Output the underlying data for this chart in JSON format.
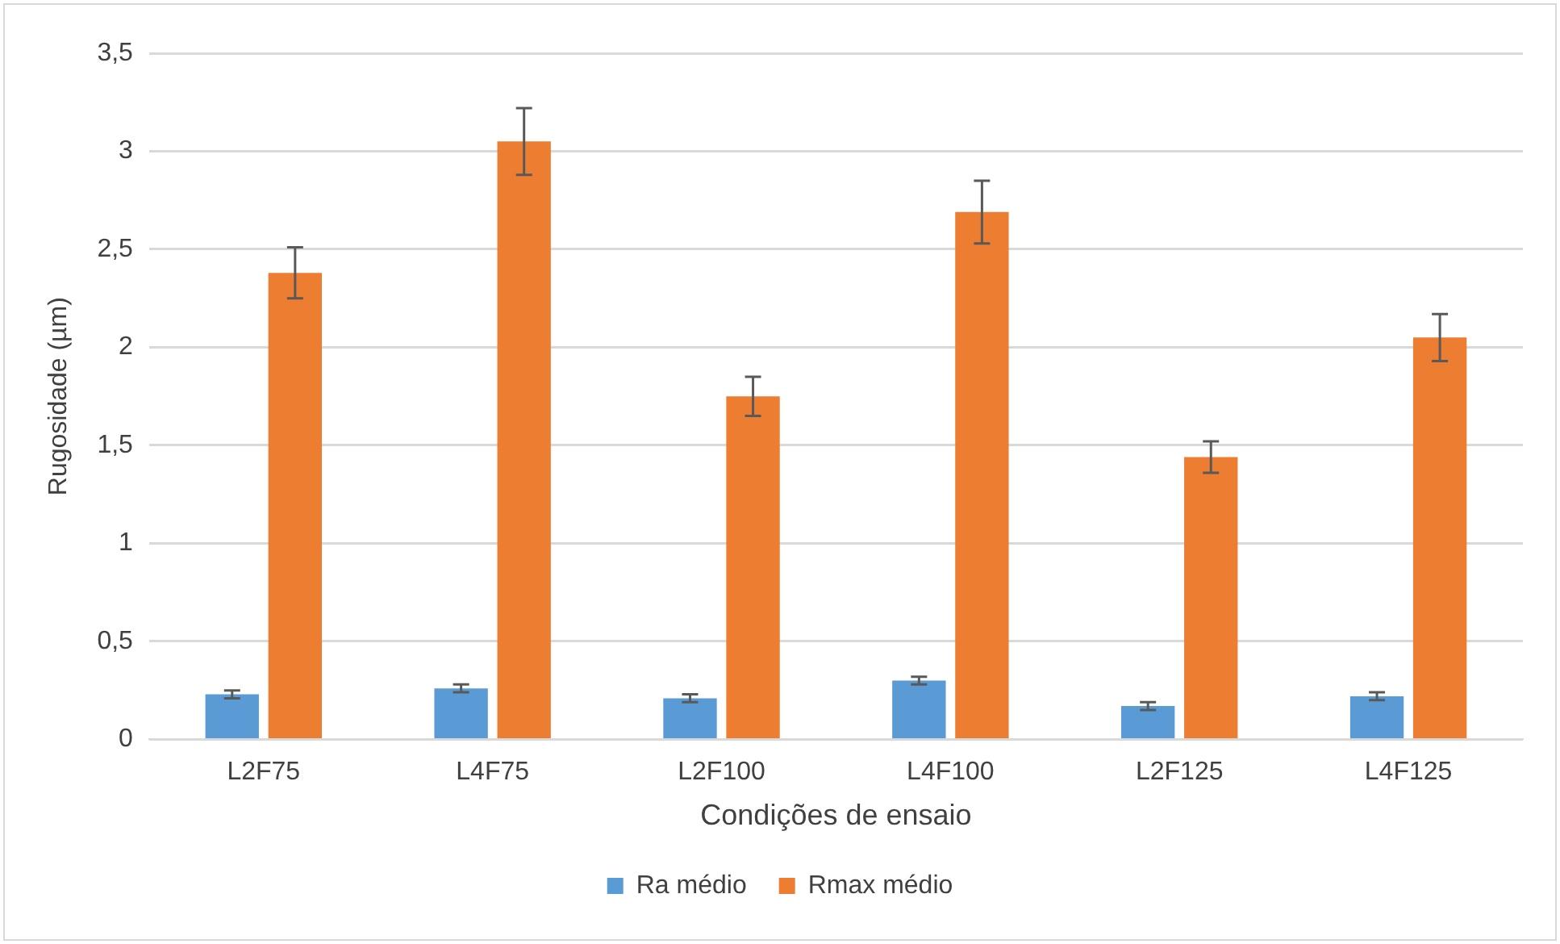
{
  "chart_data": {
    "type": "bar",
    "xlabel": "Condições de ensaio",
    "ylabel": "Rugosidade (µm)",
    "categories": [
      "L2F75",
      "L4F75",
      "L2F100",
      "L4F100",
      "L2F125",
      "L4F125"
    ],
    "series": [
      {
        "name": "Ra médio",
        "color": "#5b9bd5",
        "values": [
          0.23,
          0.26,
          0.21,
          0.3,
          0.17,
          0.22
        ],
        "errors": [
          0.02,
          0.02,
          0.02,
          0.02,
          0.02,
          0.02
        ]
      },
      {
        "name": "Rmax médio",
        "color": "#ed7d31",
        "values": [
          2.38,
          3.05,
          1.75,
          2.69,
          1.44,
          2.05
        ],
        "errors": [
          0.13,
          0.17,
          0.1,
          0.16,
          0.08,
          0.12
        ]
      }
    ],
    "ylim": [
      0,
      3.5
    ],
    "yticks": [
      {
        "value": 0,
        "label": "0"
      },
      {
        "value": 0.5,
        "label": "0,5"
      },
      {
        "value": 1,
        "label": "1"
      },
      {
        "value": 1.5,
        "label": "1,5"
      },
      {
        "value": 2,
        "label": "2"
      },
      {
        "value": 2.5,
        "label": "2,5"
      },
      {
        "value": 3,
        "label": "3"
      },
      {
        "value": 3.5,
        "label": "3,5"
      }
    ],
    "grid": "y",
    "legend": "bottom"
  }
}
